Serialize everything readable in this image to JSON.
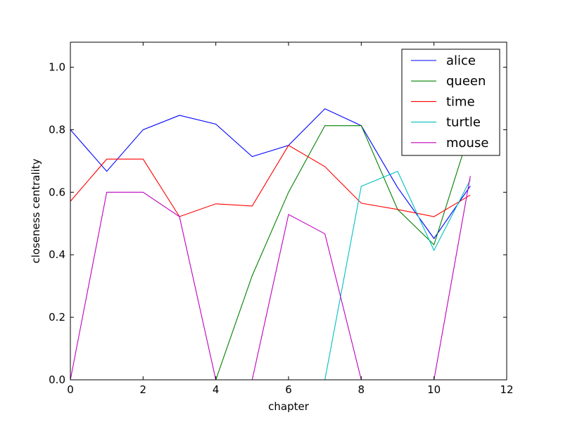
{
  "chart_data": {
    "type": "line",
    "title": "",
    "xlabel": "chapter",
    "ylabel": "closeness centrality",
    "xlim": [
      0,
      12
    ],
    "ylim": [
      0,
      1.08
    ],
    "xticks": [
      "0",
      "2",
      "4",
      "6",
      "8",
      "10",
      "12"
    ],
    "yticks": [
      "0.0",
      "0.2",
      "0.4",
      "0.6",
      "0.8",
      "1.0"
    ],
    "grid": false,
    "legend_position": "top-right",
    "x": [
      0,
      1,
      2,
      3,
      4,
      5,
      6,
      7,
      8,
      9,
      10,
      11
    ],
    "series": [
      {
        "name": "alice",
        "color": "#0000ff",
        "values": [
          0.8,
          0.667,
          0.8,
          0.846,
          0.818,
          0.714,
          0.75,
          0.867,
          0.813,
          0.615,
          0.452,
          0.62
        ]
      },
      {
        "name": "queen",
        "color": "#008000",
        "values": [
          0,
          0,
          0,
          0,
          0,
          0.333,
          0.6,
          0.813,
          0.813,
          0.545,
          0.432,
          0.8
        ]
      },
      {
        "name": "time",
        "color": "#ff0000",
        "values": [
          0.571,
          0.706,
          0.706,
          0.522,
          0.563,
          0.556,
          0.75,
          0.682,
          0.565,
          0.545,
          0.522,
          0.591
        ]
      },
      {
        "name": "turtle",
        "color": "#00bfbf",
        "values": [
          0,
          0,
          0,
          0,
          0,
          0,
          0,
          0,
          0.619,
          0.667,
          0.414,
          0.64
        ]
      },
      {
        "name": "mouse",
        "color": "#bf00bf",
        "values": [
          0,
          0.6,
          0.6,
          0.522,
          0,
          0,
          0.529,
          0.467,
          0,
          0,
          0,
          0.652
        ]
      }
    ]
  }
}
